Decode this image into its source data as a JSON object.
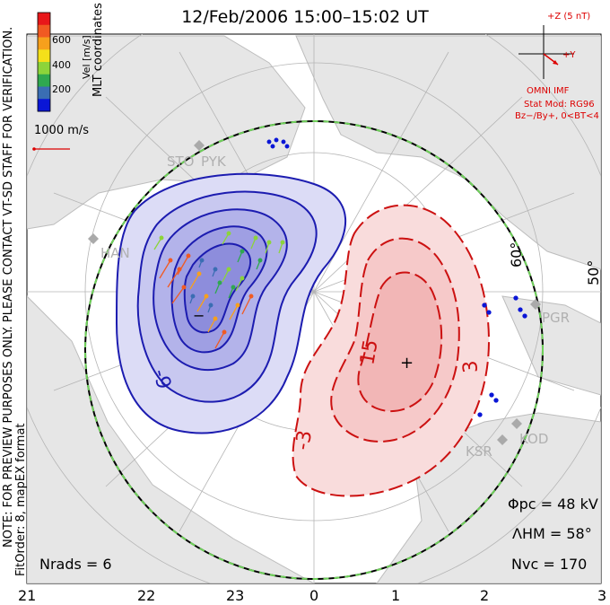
{
  "title": "12/Feb/2006 15:00–15:02 UT",
  "colorbar": {
    "label": "Vel [m/s]",
    "ticks": [
      "600",
      "400",
      "200"
    ],
    "colors": [
      "#e8171a",
      "#f15a22",
      "#f7a01c",
      "#f4e01a",
      "#8cd43a",
      "#2fa84f",
      "#3a6db3",
      "#0a16d6"
    ]
  },
  "coordinates_label": "MLT coordinates",
  "velocity_scale": "1000 m/s",
  "imf": {
    "z_label": "+Z (5 nT)",
    "y_label": "+Y",
    "source": "OMNI IMF",
    "model": "Stat Mod: RG96",
    "condition": "Bz−/By+, 0<BT<4"
  },
  "contour_labels": [
    "-9",
    "15",
    "3",
    "-3"
  ],
  "latitude_labels": [
    "60°",
    "50°"
  ],
  "stations": [
    "STO",
    "PYK",
    "HAN",
    "PGR",
    "KSR",
    "KOD"
  ],
  "stats": {
    "phi_pc": "Φpc = 48 kV",
    "lambda_hm": "ΛHM = 58°",
    "n_vc": "Nvc = 170",
    "n_rads": "Nrads = 6"
  },
  "notes": {
    "preview": "NOTE: FOR PREVIEW PURPOSES ONLY. PLEASE CONTACT VT-SD STAFF FOR VERIFICATION.",
    "fit": "FitOrder: 8, mapEX format"
  },
  "mlt_labels": [
    "21",
    "22",
    "23",
    "0",
    "1",
    "2",
    "3"
  ]
}
